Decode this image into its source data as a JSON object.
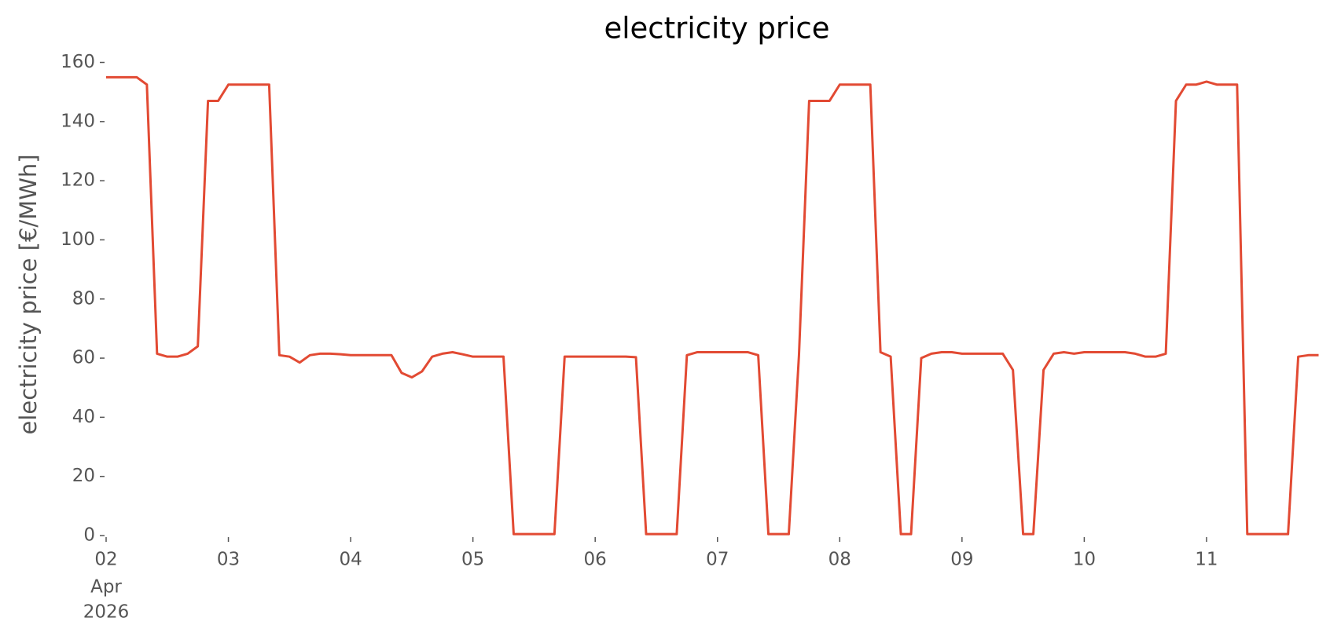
{
  "chart_data": {
    "type": "line",
    "title": "electricity price",
    "ylabel": "electricity price [€/MWh]",
    "xtick_month": "Apr",
    "xtick_year": "2026",
    "xlim": [
      "2026-04-02T00:00",
      "2026-04-11T23:00"
    ],
    "xticks": [
      {
        "value": "2026-04-02T00:00",
        "label": "02"
      },
      {
        "value": "2026-04-03T00:00",
        "label": "03"
      },
      {
        "value": "2026-04-04T00:00",
        "label": "04"
      },
      {
        "value": "2026-04-05T00:00",
        "label": "05"
      },
      {
        "value": "2026-04-06T00:00",
        "label": "06"
      },
      {
        "value": "2026-04-07T00:00",
        "label": "07"
      },
      {
        "value": "2026-04-08T00:00",
        "label": "08"
      },
      {
        "value": "2026-04-09T00:00",
        "label": "09"
      },
      {
        "value": "2026-04-10T00:00",
        "label": "10"
      },
      {
        "value": "2026-04-11T00:00",
        "label": "11"
      }
    ],
    "ylim": [
      0,
      160
    ],
    "yticks": [
      0,
      20,
      40,
      60,
      80,
      100,
      120,
      140,
      160
    ],
    "grid": false,
    "x": [
      "2026-04-02T00:00",
      "2026-04-02T02:00",
      "2026-04-02T04:00",
      "2026-04-02T06:00",
      "2026-04-02T08:00",
      "2026-04-02T10:00",
      "2026-04-02T12:00",
      "2026-04-02T14:00",
      "2026-04-02T16:00",
      "2026-04-02T18:00",
      "2026-04-02T20:00",
      "2026-04-02T22:00",
      "2026-04-03T00:00",
      "2026-04-03T02:00",
      "2026-04-03T04:00",
      "2026-04-03T06:00",
      "2026-04-03T08:00",
      "2026-04-03T10:00",
      "2026-04-03T12:00",
      "2026-04-03T14:00",
      "2026-04-03T16:00",
      "2026-04-03T18:00",
      "2026-04-03T20:00",
      "2026-04-03T22:00",
      "2026-04-04T00:00",
      "2026-04-04T02:00",
      "2026-04-04T04:00",
      "2026-04-04T06:00",
      "2026-04-04T08:00",
      "2026-04-04T10:00",
      "2026-04-04T12:00",
      "2026-04-04T14:00",
      "2026-04-04T16:00",
      "2026-04-04T18:00",
      "2026-04-04T20:00",
      "2026-04-04T22:00",
      "2026-04-05T00:00",
      "2026-04-05T02:00",
      "2026-04-05T04:00",
      "2026-04-05T06:00",
      "2026-04-05T08:00",
      "2026-04-05T10:00",
      "2026-04-05T12:00",
      "2026-04-05T14:00",
      "2026-04-05T16:00",
      "2026-04-05T18:00",
      "2026-04-05T20:00",
      "2026-04-05T22:00",
      "2026-04-06T00:00",
      "2026-04-06T02:00",
      "2026-04-06T04:00",
      "2026-04-06T06:00",
      "2026-04-06T08:00",
      "2026-04-06T10:00",
      "2026-04-06T12:00",
      "2026-04-06T14:00",
      "2026-04-06T16:00",
      "2026-04-06T18:00",
      "2026-04-06T20:00",
      "2026-04-06T22:00",
      "2026-04-07T00:00",
      "2026-04-07T02:00",
      "2026-04-07T04:00",
      "2026-04-07T06:00",
      "2026-04-07T08:00",
      "2026-04-07T10:00",
      "2026-04-07T12:00",
      "2026-04-07T14:00",
      "2026-04-07T16:00",
      "2026-04-07T18:00",
      "2026-04-07T20:00",
      "2026-04-07T22:00",
      "2026-04-08T00:00",
      "2026-04-08T02:00",
      "2026-04-08T04:00",
      "2026-04-08T06:00",
      "2026-04-08T08:00",
      "2026-04-08T10:00",
      "2026-04-08T12:00",
      "2026-04-08T14:00",
      "2026-04-08T16:00",
      "2026-04-08T18:00",
      "2026-04-08T20:00",
      "2026-04-08T22:00",
      "2026-04-09T00:00",
      "2026-04-09T02:00",
      "2026-04-09T04:00",
      "2026-04-09T06:00",
      "2026-04-09T08:00",
      "2026-04-09T10:00",
      "2026-04-09T12:00",
      "2026-04-09T14:00",
      "2026-04-09T16:00",
      "2026-04-09T18:00",
      "2026-04-09T20:00",
      "2026-04-09T22:00",
      "2026-04-10T00:00",
      "2026-04-10T02:00",
      "2026-04-10T04:00",
      "2026-04-10T06:00",
      "2026-04-10T08:00",
      "2026-04-10T10:00",
      "2026-04-10T12:00",
      "2026-04-10T14:00",
      "2026-04-10T16:00",
      "2026-04-10T18:00",
      "2026-04-10T20:00",
      "2026-04-10T22:00",
      "2026-04-11T00:00",
      "2026-04-11T02:00",
      "2026-04-11T04:00",
      "2026-04-11T06:00",
      "2026-04-11T08:00",
      "2026-04-11T10:00",
      "2026-04-11T12:00",
      "2026-04-11T14:00",
      "2026-04-11T16:00",
      "2026-04-11T18:00",
      "2026-04-11T20:00",
      "2026-04-11T22:00"
    ],
    "series": [
      {
        "name": "electricity price",
        "color": "#e24a33",
        "values": [
          155,
          155,
          155,
          155,
          152.5,
          61.5,
          60.5,
          60.5,
          61.5,
          64,
          147,
          147,
          152.5,
          152.5,
          152.5,
          152.5,
          152.5,
          61,
          60.5,
          58.5,
          61,
          61.5,
          61.5,
          61.3,
          61,
          61,
          61,
          61,
          61,
          55,
          53.5,
          55.5,
          60.5,
          61.5,
          62,
          61.3,
          60.5,
          60.5,
          60.5,
          60.5,
          0.5,
          0.5,
          0.5,
          0.5,
          0.5,
          60.5,
          60.5,
          60.5,
          60.5,
          60.5,
          60.5,
          60.5,
          60.3,
          0.5,
          0.5,
          0.5,
          0.5,
          61,
          62,
          62,
          62,
          62,
          62,
          62,
          61,
          0.5,
          0.5,
          0.5,
          61,
          147,
          147,
          147,
          152.5,
          152.5,
          152.5,
          152.5,
          62,
          60.5,
          0.5,
          0.5,
          60,
          61.5,
          62,
          62,
          61.5,
          61.5,
          61.5,
          61.5,
          61.5,
          56,
          0.5,
          0.5,
          56,
          61.5,
          62,
          61.5,
          62,
          62,
          62,
          62,
          62,
          61.5,
          60.5,
          60.5,
          61.5,
          147,
          152.5,
          152.5,
          153.5,
          152.5,
          152.5,
          152.5,
          0.5,
          0.5,
          0.5,
          0.5,
          0.5,
          60.5,
          61,
          61
        ]
      }
    ]
  }
}
